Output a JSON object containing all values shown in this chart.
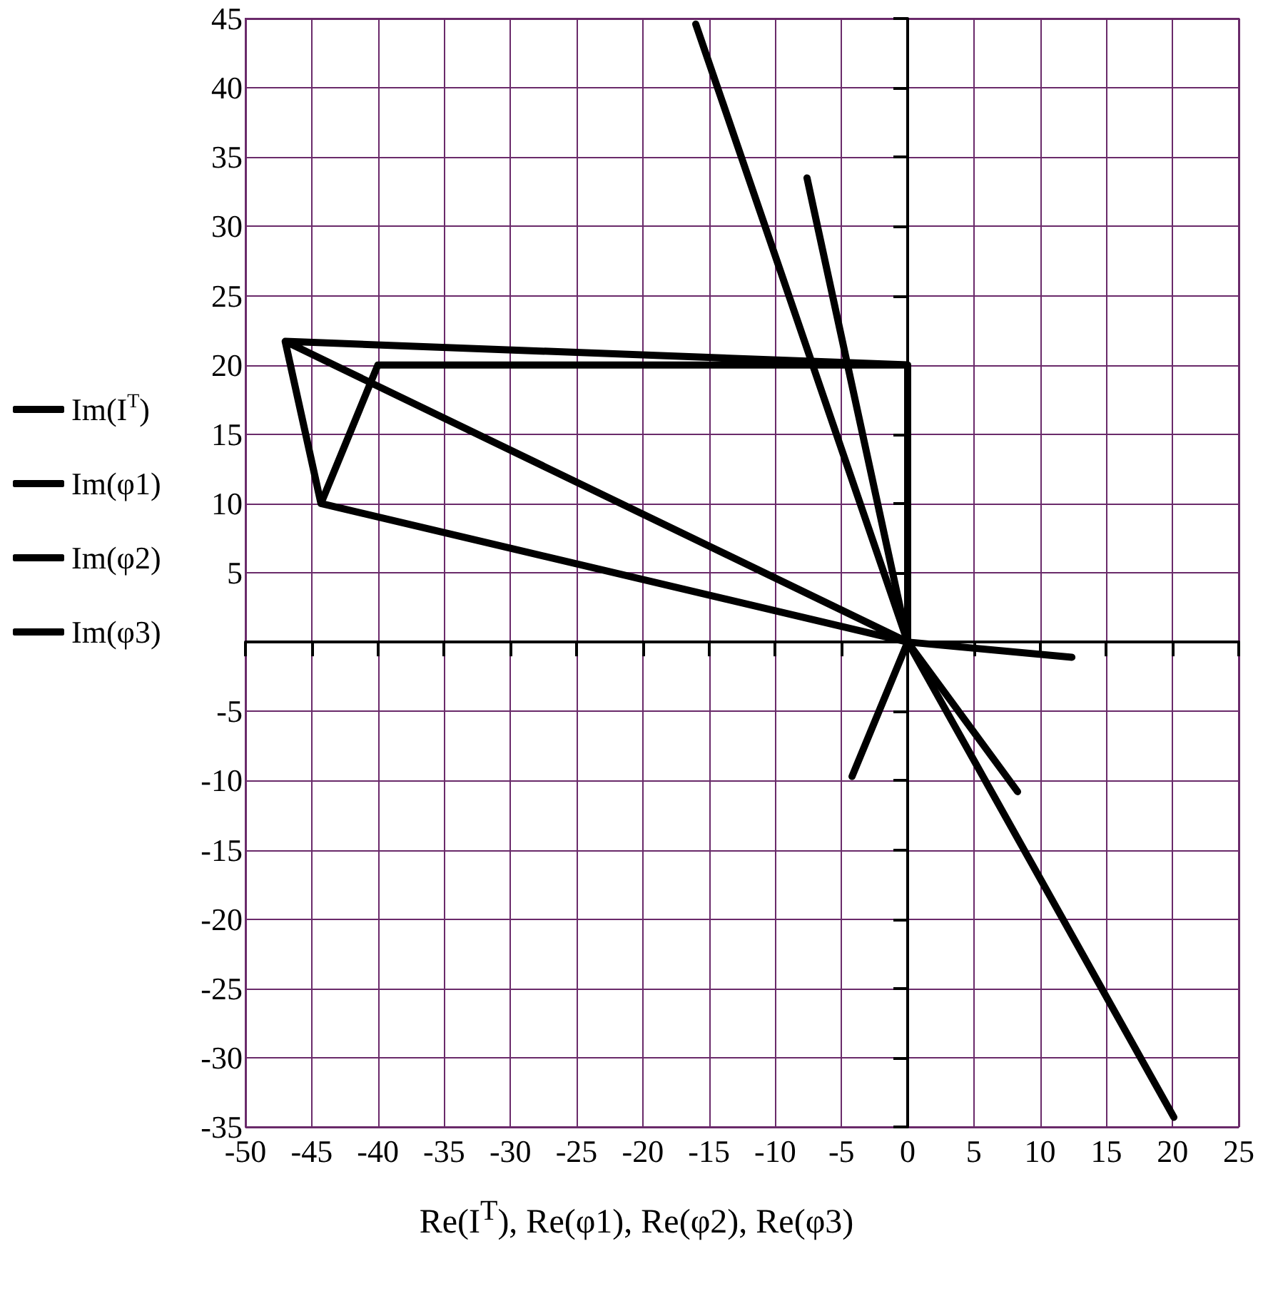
{
  "chart_data": {
    "type": "line",
    "xlabel": "Re(I$^{T}$), Re(φ1), Re(φ2), Re(φ3)",
    "series": [
      {
        "name": "Im(I$^{T}$)",
        "color": "#000000",
        "x": [
          0,
          0,
          -40,
          -44.3,
          0,
          -47,
          -44.3,
          null,
          -47,
          0
        ],
        "values": [
          0,
          20,
          20,
          10,
          0,
          21.7,
          10,
          null,
          21.7,
          20
        ]
      },
      {
        "name": "Im(φ1)",
        "color": "#000000",
        "x": [
          -16,
          0,
          20.1
        ],
        "values": [
          44.6,
          0,
          -34.3
        ]
      },
      {
        "name": "Im(φ2)",
        "color": "#000000",
        "x": [
          -7.6,
          0,
          8.3
        ],
        "values": [
          33.5,
          0,
          -10.8
        ]
      },
      {
        "name": "Im(φ3)",
        "color": "#000000",
        "x": [
          -4.2,
          0,
          12.4
        ],
        "values": [
          -9.7,
          0,
          -1.1
        ]
      }
    ],
    "xlim": [
      -50,
      25
    ],
    "xticks": [
      -50,
      -45,
      -40,
      -35,
      -30,
      -25,
      -20,
      -15,
      -10,
      -5,
      0,
      5,
      10,
      15,
      20,
      25
    ],
    "ylim": [
      -35,
      45
    ],
    "yticks": [
      -35,
      -30,
      -25,
      -20,
      -15,
      -10,
      -5,
      {
        "value": 0,
        "label": null
      },
      5,
      10,
      15,
      20,
      25,
      30,
      35,
      40,
      45
    ],
    "grid": true,
    "legend": "left",
    "marker": "none",
    "line_style": "solid"
  }
}
